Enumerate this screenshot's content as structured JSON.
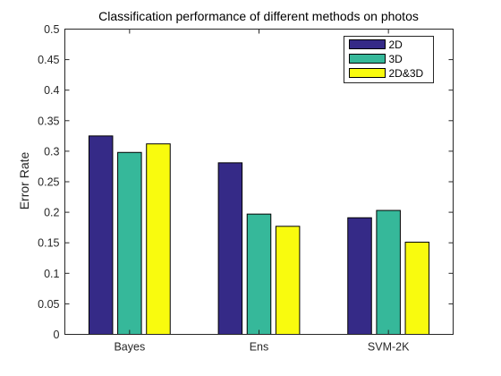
{
  "chart_data": {
    "type": "bar",
    "title": "Classification performance of different methods on photos",
    "xlabel": "",
    "ylabel": "Error Rate",
    "ylim": [
      0,
      0.5
    ],
    "yticks": [
      0,
      0.05,
      0.1,
      0.15,
      0.2,
      0.25,
      0.3,
      0.35,
      0.4,
      0.45,
      0.5
    ],
    "ytick_labels": [
      "0",
      "0.05",
      "0.1",
      "0.15",
      "0.2",
      "0.25",
      "0.3",
      "0.35",
      "0.4",
      "0.45",
      "0.5"
    ],
    "categories": [
      "Bayes",
      "Ens",
      "SVM-2K"
    ],
    "series": [
      {
        "name": "2D",
        "values": [
          0.325,
          0.281,
          0.191
        ],
        "color": "#352a87"
      },
      {
        "name": "3D",
        "values": [
          0.298,
          0.197,
          0.203
        ],
        "color": "#36b89a"
      },
      {
        "name": "2D&3D",
        "values": [
          0.312,
          0.177,
          0.151
        ],
        "color": "#f9fb0e"
      }
    ],
    "legend": "top-right",
    "grid": false
  }
}
